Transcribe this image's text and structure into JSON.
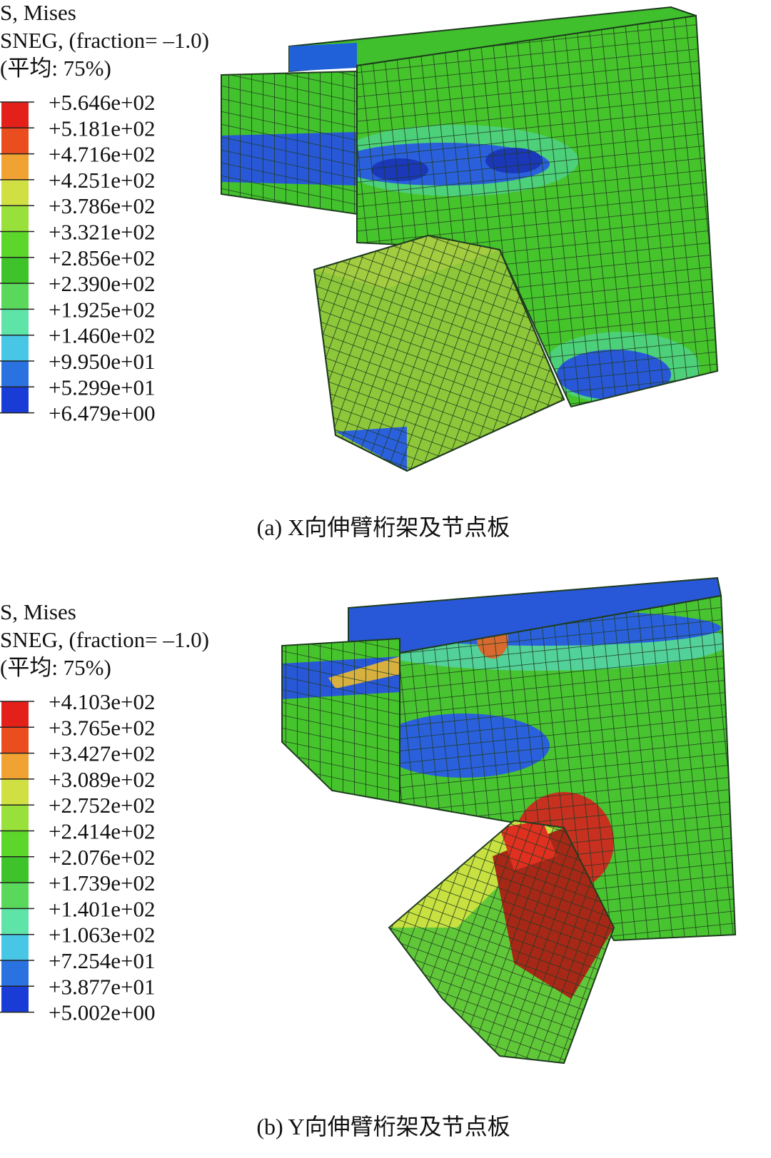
{
  "panels": [
    {
      "legend_title": [
        "S, Mises",
        "SNEG, (fraction= –1.0)",
        "(平均: 75%)"
      ],
      "legend_labels": [
        "+5.646e+02",
        "+5.181e+02",
        "+4.716e+02",
        "+4.251e+02",
        "+3.786e+02",
        "+3.321e+02",
        "+2.856e+02",
        "+2.390e+02",
        "+1.925e+02",
        "+1.460e+02",
        "+9.950e+01",
        "+5.299e+01",
        "+6.479e+00"
      ],
      "caption": "(a) X向伸臂桁架及节点板"
    },
    {
      "legend_title": [
        "S, Mises",
        "SNEG, (fraction= –1.0)",
        "(平均: 75%)"
      ],
      "legend_labels": [
        "+4.103e+02",
        "+3.765e+02",
        "+3.427e+02",
        "+3.089e+02",
        "+2.752e+02",
        "+2.414e+02",
        "+2.076e+02",
        "+1.739e+02",
        "+1.401e+02",
        "+1.063e+02",
        "+7.254e+01",
        "+3.877e+01",
        "+5.002e+00"
      ],
      "caption": "(b) Y向伸臂桁架及节点板"
    }
  ]
}
